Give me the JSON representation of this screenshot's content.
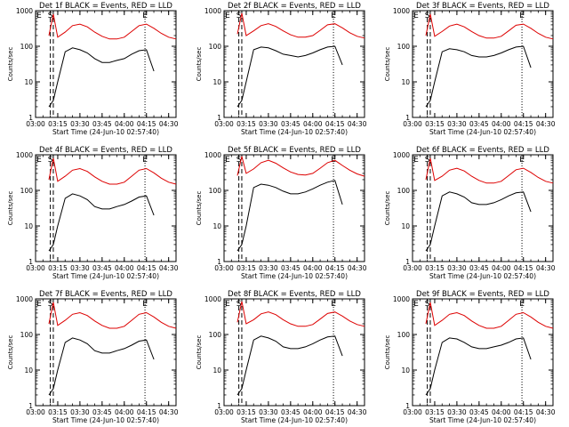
{
  "panel_layout": {
    "ytick_labels": [
      "1",
      "10",
      "100",
      "1000"
    ],
    "xtick_labels": [
      "03:00",
      "03:15",
      "03:30",
      "03:45",
      "04:00",
      "04:15",
      "04:30"
    ],
    "xlabel": "Start Time (24-Jun-10 02:57:40)",
    "ylabel": "Counts/sec",
    "marker_labels": [
      "E",
      "S",
      "E"
    ],
    "colors": {
      "events": "#000000",
      "lld": "#dd0000",
      "axis": "#000000"
    }
  },
  "chart_data": [
    {
      "type": "line",
      "title": "Det 1f BLACK = Events, RED = LLD",
      "xlabel": "Start Time (24-Jun-10 02:57:40)",
      "ylabel": "Counts/sec",
      "yscale": "log",
      "ylim": [
        1,
        1000
      ],
      "xlim": [
        "03:00",
        "04:35"
      ],
      "x": [
        "03:09",
        "03:12",
        "03:15",
        "03:20",
        "03:25",
        "03:30",
        "03:35",
        "03:40",
        "03:45",
        "03:50",
        "03:55",
        "04:00",
        "04:05",
        "04:10",
        "04:15",
        "04:20",
        "04:25",
        "04:30",
        "04:35"
      ],
      "series": [
        {
          "name": "Events",
          "color": "#000000",
          "values": [
            2,
            3,
            10,
            70,
            90,
            80,
            65,
            45,
            35,
            35,
            40,
            45,
            60,
            75,
            80,
            20,
            null,
            null,
            null
          ]
        },
        {
          "name": "LLD",
          "color": "#dd0000",
          "values": [
            200,
            800,
            180,
            250,
            380,
            420,
            350,
            250,
            190,
            160,
            160,
            180,
            260,
            380,
            420,
            320,
            230,
            180,
            160
          ]
        }
      ],
      "vlines": [
        {
          "x": "03:10",
          "style": "dashed",
          "label": "S"
        },
        {
          "x": "03:12",
          "style": "dashed",
          "label": ""
        },
        {
          "x": "04:14",
          "style": "dotted",
          "label": "E"
        }
      ]
    },
    {
      "type": "line",
      "title": "Det 2f BLACK = Events, RED = LLD",
      "xlabel": "Start Time (24-Jun-10 02:57:40)",
      "ylabel": "Counts/sec",
      "yscale": "log",
      "ylim": [
        1,
        1000
      ],
      "xlim": [
        "03:00",
        "04:35"
      ],
      "x": [
        "03:09",
        "03:12",
        "03:15",
        "03:20",
        "03:25",
        "03:30",
        "03:35",
        "03:40",
        "03:45",
        "03:50",
        "03:55",
        "04:00",
        "04:05",
        "04:10",
        "04:15",
        "04:20",
        "04:25",
        "04:30",
        "04:35"
      ],
      "series": [
        {
          "name": "Events",
          "color": "#000000",
          "values": [
            2,
            3,
            10,
            80,
            95,
            90,
            75,
            60,
            55,
            50,
            55,
            65,
            80,
            95,
            100,
            30,
            null,
            null,
            null
          ]
        },
        {
          "name": "LLD",
          "color": "#dd0000",
          "values": [
            220,
            850,
            200,
            270,
            380,
            430,
            360,
            270,
            210,
            180,
            180,
            200,
            280,
            400,
            430,
            330,
            240,
            190,
            170
          ]
        }
      ],
      "vlines": [
        {
          "x": "03:10",
          "style": "dashed",
          "label": "S"
        },
        {
          "x": "03:12",
          "style": "dashed",
          "label": ""
        },
        {
          "x": "04:14",
          "style": "dotted",
          "label": "E"
        }
      ]
    },
    {
      "type": "line",
      "title": "Det 3f BLACK = Events, RED = LLD",
      "xlabel": "Start Time (24-Jun-10 02:57:40)",
      "ylabel": "Counts/sec",
      "yscale": "log",
      "ylim": [
        1,
        1000
      ],
      "xlim": [
        "03:00",
        "04:35"
      ],
      "x": [
        "03:09",
        "03:12",
        "03:15",
        "03:20",
        "03:25",
        "03:30",
        "03:35",
        "03:40",
        "03:45",
        "03:50",
        "03:55",
        "04:00",
        "04:05",
        "04:10",
        "04:15",
        "04:20",
        "04:25",
        "04:30",
        "04:35"
      ],
      "series": [
        {
          "name": "Events",
          "color": "#000000",
          "values": [
            2,
            3,
            10,
            70,
            85,
            80,
            70,
            55,
            50,
            50,
            55,
            65,
            80,
            95,
            100,
            25,
            null,
            null,
            null
          ]
        },
        {
          "name": "LLD",
          "color": "#dd0000",
          "values": [
            200,
            800,
            190,
            260,
            370,
            420,
            350,
            260,
            200,
            170,
            170,
            190,
            270,
            390,
            420,
            320,
            230,
            180,
            160
          ]
        }
      ],
      "vlines": [
        {
          "x": "03:10",
          "style": "dashed",
          "label": "S"
        },
        {
          "x": "03:12",
          "style": "dashed",
          "label": ""
        },
        {
          "x": "04:14",
          "style": "dotted",
          "label": "E"
        }
      ]
    },
    {
      "type": "line",
      "title": "Det 4f BLACK = Events, RED = LLD",
      "xlabel": "Start Time (24-Jun-10 02:57:40)",
      "ylabel": "Counts/sec",
      "yscale": "log",
      "ylim": [
        1,
        1000
      ],
      "xlim": [
        "03:00",
        "04:35"
      ],
      "x": [
        "03:09",
        "03:12",
        "03:15",
        "03:20",
        "03:25",
        "03:30",
        "03:35",
        "03:40",
        "03:45",
        "03:50",
        "03:55",
        "04:00",
        "04:05",
        "04:10",
        "04:15",
        "04:20",
        "04:25",
        "04:30",
        "04:35"
      ],
      "series": [
        {
          "name": "Events",
          "color": "#000000",
          "values": [
            2,
            3,
            10,
            60,
            80,
            70,
            55,
            35,
            30,
            30,
            35,
            40,
            50,
            65,
            70,
            20,
            null,
            null,
            null
          ]
        },
        {
          "name": "LLD",
          "color": "#dd0000",
          "values": [
            200,
            800,
            180,
            250,
            370,
            410,
            340,
            240,
            180,
            150,
            150,
            170,
            250,
            370,
            410,
            310,
            220,
            170,
            150
          ]
        }
      ],
      "vlines": [
        {
          "x": "03:10",
          "style": "dashed",
          "label": "S"
        },
        {
          "x": "03:12",
          "style": "dashed",
          "label": ""
        },
        {
          "x": "04:14",
          "style": "dotted",
          "label": "E"
        }
      ]
    },
    {
      "type": "line",
      "title": "Det 5f BLACK = Events, RED = LLD",
      "xlabel": "Start Time (24-Jun-10 02:57:40)",
      "ylabel": "Counts/sec",
      "yscale": "log",
      "ylim": [
        1,
        1000
      ],
      "xlim": [
        "03:00",
        "04:35"
      ],
      "x": [
        "03:09",
        "03:12",
        "03:15",
        "03:20",
        "03:25",
        "03:30",
        "03:35",
        "03:40",
        "03:45",
        "03:50",
        "03:55",
        "04:00",
        "04:05",
        "04:10",
        "04:15",
        "04:20",
        "04:25",
        "04:30",
        "04:35"
      ],
      "series": [
        {
          "name": "Events",
          "color": "#000000",
          "values": [
            2,
            3,
            10,
            120,
            150,
            140,
            120,
            95,
            80,
            80,
            90,
            110,
            140,
            170,
            190,
            40,
            null,
            null,
            null
          ]
        },
        {
          "name": "LLD",
          "color": "#dd0000",
          "values": [
            260,
            900,
            300,
            400,
            600,
            700,
            580,
            430,
            330,
            280,
            270,
            300,
            420,
            600,
            700,
            500,
            370,
            290,
            250
          ]
        }
      ],
      "vlines": [
        {
          "x": "03:10",
          "style": "dashed",
          "label": "S"
        },
        {
          "x": "03:12",
          "style": "dashed",
          "label": ""
        },
        {
          "x": "04:14",
          "style": "dotted",
          "label": "E"
        }
      ]
    },
    {
      "type": "line",
      "title": "Det 6f BLACK = Events, RED = LLD",
      "xlabel": "Start Time (24-Jun-10 02:57:40)",
      "ylabel": "Counts/sec",
      "yscale": "log",
      "ylim": [
        1,
        1000
      ],
      "xlim": [
        "03:00",
        "04:35"
      ],
      "x": [
        "03:09",
        "03:12",
        "03:15",
        "03:20",
        "03:25",
        "03:30",
        "03:35",
        "03:40",
        "03:45",
        "03:50",
        "03:55",
        "04:00",
        "04:05",
        "04:10",
        "04:15",
        "04:20",
        "04:25",
        "04:30",
        "04:35"
      ],
      "series": [
        {
          "name": "Events",
          "color": "#000000",
          "values": [
            2,
            3,
            10,
            70,
            90,
            80,
            65,
            45,
            40,
            40,
            45,
            55,
            70,
            85,
            90,
            25,
            null,
            null,
            null
          ]
        },
        {
          "name": "LLD",
          "color": "#dd0000",
          "values": [
            200,
            800,
            190,
            250,
            370,
            420,
            350,
            250,
            190,
            160,
            160,
            180,
            260,
            380,
            420,
            320,
            230,
            180,
            160
          ]
        }
      ],
      "vlines": [
        {
          "x": "03:10",
          "style": "dashed",
          "label": "S"
        },
        {
          "x": "03:12",
          "style": "dashed",
          "label": ""
        },
        {
          "x": "04:14",
          "style": "dotted",
          "label": "E"
        }
      ]
    },
    {
      "type": "line",
      "title": "Det 7f BLACK = Events, RED = LLD",
      "xlabel": "Start Time (24-Jun-10 02:57:40)",
      "ylabel": "Counts/sec",
      "yscale": "log",
      "ylim": [
        1,
        1000
      ],
      "xlim": [
        "03:00",
        "04:35"
      ],
      "x": [
        "03:09",
        "03:12",
        "03:15",
        "03:20",
        "03:25",
        "03:30",
        "03:35",
        "03:40",
        "03:45",
        "03:50",
        "03:55",
        "04:00",
        "04:05",
        "04:10",
        "04:15",
        "04:20",
        "04:25",
        "04:30",
        "04:35"
      ],
      "series": [
        {
          "name": "Events",
          "color": "#000000",
          "values": [
            2,
            3,
            10,
            60,
            80,
            70,
            55,
            35,
            30,
            30,
            35,
            40,
            50,
            65,
            70,
            20,
            null,
            null,
            null
          ]
        },
        {
          "name": "LLD",
          "color": "#dd0000",
          "values": [
            200,
            800,
            180,
            250,
            370,
            410,
            340,
            240,
            180,
            150,
            150,
            170,
            250,
            370,
            410,
            310,
            220,
            170,
            150
          ]
        }
      ],
      "vlines": [
        {
          "x": "03:10",
          "style": "dashed",
          "label": "S"
        },
        {
          "x": "03:12",
          "style": "dashed",
          "label": ""
        },
        {
          "x": "04:14",
          "style": "dotted",
          "label": "E"
        }
      ]
    },
    {
      "type": "line",
      "title": "Det 8f BLACK = Events, RED = LLD",
      "xlabel": "Start Time (24-Jun-10 02:57:40)",
      "ylabel": "Counts/sec",
      "yscale": "log",
      "ylim": [
        1,
        1000
      ],
      "xlim": [
        "03:00",
        "04:35"
      ],
      "x": [
        "03:09",
        "03:12",
        "03:15",
        "03:20",
        "03:25",
        "03:30",
        "03:35",
        "03:40",
        "03:45",
        "03:50",
        "03:55",
        "04:00",
        "04:05",
        "04:10",
        "04:15",
        "04:20",
        "04:25",
        "04:30",
        "04:35"
      ],
      "series": [
        {
          "name": "Events",
          "color": "#000000",
          "values": [
            2,
            3,
            10,
            70,
            90,
            80,
            65,
            45,
            40,
            40,
            45,
            55,
            70,
            85,
            90,
            25,
            null,
            null,
            null
          ]
        },
        {
          "name": "LLD",
          "color": "#dd0000",
          "values": [
            220,
            850,
            200,
            260,
            380,
            430,
            360,
            260,
            200,
            170,
            170,
            190,
            270,
            390,
            430,
            330,
            240,
            190,
            170
          ]
        }
      ],
      "vlines": [
        {
          "x": "03:10",
          "style": "dashed",
          "label": "S"
        },
        {
          "x": "03:12",
          "style": "dashed",
          "label": ""
        },
        {
          "x": "04:14",
          "style": "dotted",
          "label": "E"
        }
      ]
    },
    {
      "type": "line",
      "title": "Det 9f BLACK = Events, RED = LLD",
      "xlabel": "Start Time (24-Jun-10 02:57:40)",
      "ylabel": "Counts/sec",
      "yscale": "log",
      "ylim": [
        1,
        1000
      ],
      "xlim": [
        "03:00",
        "04:35"
      ],
      "x": [
        "03:09",
        "03:12",
        "03:15",
        "03:20",
        "03:25",
        "03:30",
        "03:35",
        "03:40",
        "03:45",
        "03:50",
        "03:55",
        "04:00",
        "04:05",
        "04:10",
        "04:15",
        "04:20",
        "04:25",
        "04:30",
        "04:35"
      ],
      "series": [
        {
          "name": "Events",
          "color": "#000000",
          "values": [
            2,
            3,
            10,
            60,
            80,
            75,
            60,
            45,
            40,
            40,
            45,
            50,
            60,
            75,
            80,
            20,
            null,
            null,
            null
          ]
        },
        {
          "name": "LLD",
          "color": "#dd0000",
          "values": [
            200,
            800,
            180,
            250,
            370,
            410,
            340,
            240,
            180,
            150,
            150,
            170,
            250,
            370,
            410,
            310,
            220,
            170,
            150
          ]
        }
      ],
      "vlines": [
        {
          "x": "03:10",
          "style": "dashed",
          "label": "S"
        },
        {
          "x": "03:12",
          "style": "dashed",
          "label": ""
        },
        {
          "x": "04:14",
          "style": "dotted",
          "label": "E"
        }
      ]
    }
  ]
}
